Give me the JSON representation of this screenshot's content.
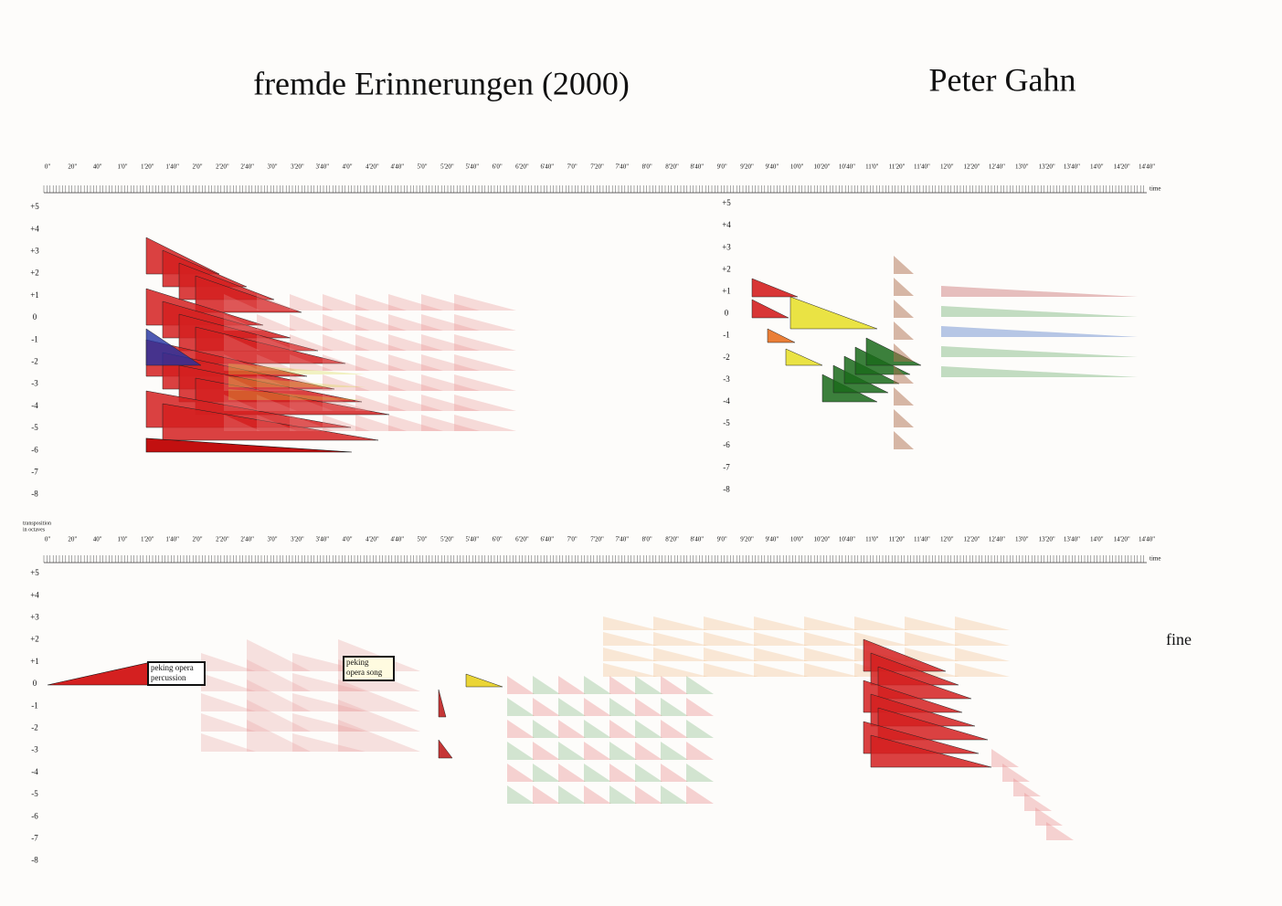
{
  "header": {
    "title": "fremde Erinnerungen  (2000)",
    "composer": "Peter Gahn"
  },
  "time_axis": {
    "labels": [
      "0\"",
      "20\"",
      "40\"",
      "1'0\"",
      "1'20\"",
      "1'40\"",
      "2'0\"",
      "2'20\"",
      "2'40\"",
      "3'0\"",
      "3'20\"",
      "3'40\"",
      "4'0\"",
      "4'20\"",
      "4'40\"",
      "5'0\"",
      "5'20\"",
      "5'40\"",
      "6'0\"",
      "6'20\"",
      "6'40\"",
      "7'0\"",
      "7'20\"",
      "7'40\"",
      "8'0\"",
      "8'20\"",
      "8'40\"",
      "9'0\"",
      "9'20\"",
      "9'40\"",
      "10'0\"",
      "10'20\"",
      "10'40\"",
      "11'0\"",
      "11'20\"",
      "11'40\"",
      "12'0\"",
      "12'20\"",
      "12'40\"",
      "13'0\"",
      "13'20\"",
      "13'40\"",
      "14'0\"",
      "14'20\"",
      "14'40\""
    ],
    "unit": "time"
  },
  "octave_axis": {
    "caption": [
      "transposition",
      "in octaves"
    ],
    "labels": [
      "+5",
      "+4",
      "+3",
      "+2",
      "+1",
      "0",
      "-1",
      "-2",
      "-3",
      "-4",
      "-5",
      "-6",
      "-7",
      "-8"
    ]
  },
  "annotations": {
    "percussion": [
      "peking opera",
      "percussion"
    ],
    "song": [
      "peking",
      "opera song"
    ],
    "ending": "fine"
  }
}
